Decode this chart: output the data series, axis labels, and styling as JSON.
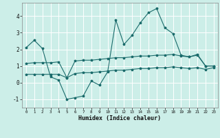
{
  "xlabel": "Humidex (Indice chaleur)",
  "background_color": "#cceee8",
  "line_color": "#1a6b6b",
  "x_ticks": [
    0,
    1,
    2,
    3,
    4,
    5,
    6,
    7,
    8,
    9,
    10,
    11,
    12,
    13,
    14,
    15,
    16,
    17,
    18,
    19,
    20,
    21,
    22,
    23
  ],
  "xlim": [
    -0.5,
    23.5
  ],
  "ylim": [
    -1.5,
    4.8
  ],
  "yticks": [
    -1,
    0,
    1,
    2,
    3,
    4
  ],
  "line1_x": [
    0,
    1,
    2,
    3,
    4,
    5,
    6,
    7,
    8,
    9,
    10,
    11,
    12,
    13,
    14,
    15,
    16,
    17,
    18,
    19,
    20,
    21,
    22,
    23
  ],
  "line1_y": [
    2.1,
    2.55,
    2.05,
    0.35,
    0.15,
    -1.0,
    -0.9,
    -0.8,
    0.1,
    -0.15,
    0.65,
    3.75,
    2.3,
    2.85,
    3.6,
    4.2,
    4.45,
    3.3,
    2.95,
    1.65,
    1.55,
    1.7,
    1.0,
    1.0
  ],
  "line2_x": [
    0,
    1,
    2,
    3,
    4,
    5,
    6,
    7,
    8,
    9,
    10,
    11,
    12,
    13,
    14,
    15,
    16,
    17,
    18,
    19,
    20,
    21,
    22,
    23
  ],
  "line2_y": [
    1.15,
    1.2,
    1.2,
    1.2,
    1.25,
    0.3,
    1.3,
    1.35,
    1.35,
    1.4,
    1.45,
    1.5,
    1.5,
    1.55,
    1.6,
    1.6,
    1.65,
    1.65,
    1.7,
    1.6,
    1.55,
    1.65,
    1.0,
    1.0
  ],
  "line3_x": [
    0,
    1,
    2,
    3,
    4,
    5,
    6,
    7,
    8,
    9,
    10,
    11,
    12,
    13,
    14,
    15,
    16,
    17,
    18,
    19,
    20,
    21,
    22,
    23
  ],
  "line3_y": [
    0.5,
    0.5,
    0.5,
    0.5,
    0.5,
    0.3,
    0.55,
    0.6,
    0.6,
    0.65,
    0.7,
    0.75,
    0.75,
    0.8,
    0.85,
    0.85,
    0.9,
    0.9,
    0.95,
    0.9,
    0.85,
    0.9,
    0.8,
    0.9
  ]
}
